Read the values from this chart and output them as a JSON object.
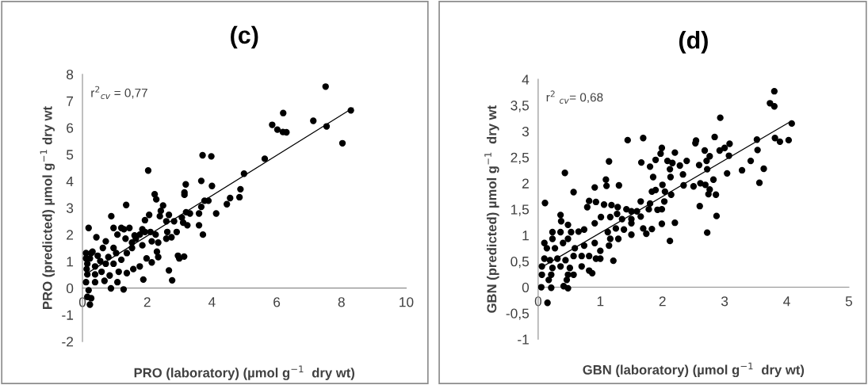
{
  "chart_data": [
    {
      "type": "scatter",
      "title": "(c)",
      "xlabel": "PRO (laboratory) (µmol g$^{−1}$  dry wt)",
      "ylabel": "PRO (predicted) µmol g$^{−1}$ dry wt",
      "annotations": [
        "r$^{2}$$_{cv}$ = 0,77"
      ],
      "xlim": [
        0,
        10
      ],
      "ylim": [
        -2,
        8
      ],
      "xticks": [
        0,
        2,
        4,
        6,
        8,
        10
      ],
      "yticks": [
        -2,
        -1,
        0,
        1,
        2,
        3,
        4,
        5,
        6,
        7,
        8
      ],
      "series": [
        {
          "marker": "circle",
          "color": "#000000",
          "x": [
            7.51,
            8.29,
            6.2,
            5.86,
            6.02,
            6.19,
            6.3,
            7.13,
            7.54,
            8.03,
            5.63,
            4.99,
            4.88,
            4.85,
            4.56,
            4.46,
            2.03,
            3.71,
            3.98,
            3.67,
            4.0,
            3.19,
            3.15,
            3.15,
            2.23,
            2.28,
            1.35,
            3.77,
            3.89,
            3.67,
            4.13,
            2.49,
            2.42,
            2.39,
            2.67,
            2.06,
            1.93,
            0.89,
            3.2,
            3.32,
            3.07,
            3.11,
            3.24,
            3.6,
            3.6,
            3.72,
            2.83,
            2.59,
            2.91,
            2.62,
            2.26,
            2.1,
            1.77,
            1.61,
            1.45,
            1.2,
            0.96,
            0.19,
            0.43,
            0.72,
            1.08,
            1.33,
            1.53,
            1.85,
            2.14,
            2.34,
            2.59,
            2.75,
            2.3,
            2.34,
            2.14,
            2.95,
            2.99,
            3.14,
            2.67,
            2.77,
            1.88,
            1.27,
            0.88,
            1.98,
            1.77,
            1.57,
            1.37,
            1.12,
            1.2,
            0.96,
            0.8,
            0.63,
            0.31,
            0.23,
            0.15,
            0.39,
            0.59,
            0.84,
            1.08,
            0.68,
            0.39,
            0.15,
            0.11,
            0.19,
            0.27,
            0.15,
            0.23,
            0.13,
            0.27,
            0.47,
            0.72,
            1.04,
            1.37,
            1.53,
            1.65,
            0.96,
            0.55,
            0.39,
            0.11,
            0.11,
            1.28,
            1.85,
            1.93
          ],
          "values": [
            7.54,
            6.65,
            6.55,
            6.11,
            5.93,
            5.84,
            5.83,
            6.26,
            6.05,
            5.42,
            4.84,
            4.28,
            3.7,
            3.4,
            3.37,
            3.14,
            4.4,
            4.97,
            4.93,
            4.01,
            3.82,
            3.88,
            3.58,
            3.49,
            3.51,
            3.32,
            3.11,
            3.27,
            3.27,
            3.04,
            2.79,
            3.09,
            2.89,
            2.69,
            2.74,
            2.74,
            2.54,
            2.69,
            2.84,
            2.79,
            2.64,
            2.45,
            2.35,
            2.35,
            2.79,
            2.0,
            2.5,
            2.5,
            2.1,
            2.1,
            2.0,
            2.1,
            2.0,
            1.97,
            2.25,
            2.25,
            2.25,
            2.25,
            1.9,
            1.75,
            2.0,
            1.85,
            1.7,
            1.6,
            1.75,
            1.7,
            1.85,
            1.9,
            1.36,
            1.16,
            0.96,
            1.21,
            1.11,
            1.18,
            0.66,
            0.29,
            0.32,
            -0.05,
            -0.01,
            1.11,
            0.81,
            0.71,
            0.56,
            0.61,
            1.06,
            0.91,
            1.16,
            1.5,
            1.36,
            1.11,
            0.91,
            0.81,
            0.61,
            0.47,
            0.22,
            0.27,
            0.22,
            0.51,
            0.22,
            -0.08,
            -0.38,
            -0.33,
            -0.62,
            0.71,
            1.31,
            1.21,
            0.91,
            1.31,
            1.31,
            1.5,
            1.85,
            1.5,
            1.01,
            0.51,
            1.11,
            1.31,
            2.2,
            2.2,
            2.1
          ]
        },
        {
          "type": "line",
          "color": "#000000",
          "x": [
            0.1,
            8.35
          ],
          "values": [
            0.52,
            6.74
          ]
        }
      ]
    },
    {
      "type": "scatter",
      "title": "(d)",
      "xlabel": "GBN (laboratory) (µmol g$^{−1}$  dry wt)",
      "ylabel": "GBN (predicted) µmol g$^{−1}$  dry wt",
      "annotations": [
        "r$^{2}$ $_{cv}$= 0,68"
      ],
      "xlim": [
        0,
        5
      ],
      "ylim": [
        -1,
        4
      ],
      "xticks": [
        0,
        1,
        2,
        3,
        4,
        5
      ],
      "yticks": [
        {
          "value": -1,
          "label": "-1"
        },
        {
          "value": -0.5,
          "label": "-0,5"
        },
        0,
        {
          "value": 0.5,
          "label": "0,5"
        },
        1,
        {
          "value": 1.5,
          "label": "1,5"
        },
        2,
        {
          "value": 2.5,
          "label": "2,5"
        },
        3,
        {
          "value": 3.5,
          "label": "3,5"
        },
        4
      ],
      "series": [
        {
          "marker": "circle",
          "color": "#000000",
          "x": [
            3.8,
            3.73,
            3.8,
            2.93,
            4.08,
            1.69,
            2.84,
            2.54,
            2.53,
            3.52,
            3.81,
            3.89,
            4.03,
            3.08,
            3.0,
            2.92,
            2.68,
            1.99,
            1.97,
            2.2,
            2.76,
            3.07,
            3.53,
            1.66,
            1.89,
            1.8,
            2.08,
            2.16,
            2.28,
            2.39,
            2.59,
            2.71,
            2.72,
            2.12,
            3.42,
            3.28,
            3.63,
            3.04,
            2.33,
            1.85,
            2.13,
            2.82,
            3.56,
            2.34,
            2.5,
            2.61,
            2.69,
            2.76,
            2.74,
            2.86,
            2.0,
            2.04,
            1.83,
            1.89,
            2.14,
            2.03,
            1.65,
            1.8,
            1.78,
            1.92,
            1.99,
            2.6,
            1.59,
            1.65,
            2.87,
            1.99,
            2.2,
            1.69,
            1.83,
            1.74,
            2.72,
            2.12,
            1.44,
            1.14,
            0.43,
            0.11,
            0.57,
            1.09,
            1.1,
            1.3,
            0.91,
            0.82,
            0.93,
            0.79,
            1.06,
            1.18,
            1.28,
            1.42,
            1.5,
            0.36,
            0.37,
            0.48,
            0.53,
            0.65,
            0.74,
            0.91,
            1.01,
            1.16,
            1.27,
            1.35,
            1.5,
            1.12,
            1.25,
            1.38,
            1.5,
            1.16,
            1.29,
            1.5,
            0.23,
            0.36,
            0.1,
            0.23,
            0.14,
            0.27,
            0.4,
            0.48,
            0.59,
            0.74,
            0.91,
            1.0,
            1.14,
            0.57,
            0.7,
            0.82,
            0.93,
            1.0,
            1.21,
            0.1,
            0.19,
            0.31,
            0.44,
            0.06,
            0.23,
            0.36,
            0.51,
            0.7,
            0.82,
            0.87,
            0.06,
            0.21,
            0.48,
            0.57,
            0.17,
            0.46,
            0.05,
            0.21,
            0.41,
            0.48,
            0.15
          ],
          "values": [
            3.77,
            3.54,
            3.48,
            3.26,
            3.15,
            2.87,
            2.89,
            2.82,
            2.77,
            2.84,
            2.87,
            2.8,
            2.83,
            2.76,
            2.68,
            2.63,
            2.63,
            2.68,
            2.57,
            2.59,
            2.52,
            2.53,
            2.64,
            2.4,
            2.45,
            2.32,
            2.43,
            2.39,
            2.34,
            2.43,
            2.35,
            2.43,
            2.27,
            2.27,
            2.43,
            2.25,
            2.28,
            2.19,
            2.17,
            2.12,
            2.12,
            2.07,
            2.01,
            1.96,
            1.94,
            2.0,
            1.97,
            1.88,
            1.79,
            1.78,
            1.97,
            1.84,
            1.84,
            1.87,
            1.78,
            1.65,
            1.65,
            1.61,
            1.5,
            1.49,
            1.5,
            1.56,
            1.46,
            1.36,
            1.37,
            1.22,
            1.24,
            1.13,
            1.12,
            1.03,
            1.05,
            0.89,
            2.83,
            2.42,
            2.2,
            1.62,
            1.83,
            2.07,
            1.95,
            1.96,
            1.92,
            1.66,
            1.64,
            1.54,
            1.59,
            1.58,
            1.54,
            1.5,
            1.46,
            1.39,
            1.27,
            1.2,
            1.06,
            1.07,
            1.11,
            1.23,
            1.35,
            1.35,
            1.41,
            1.31,
            1.31,
            1.06,
            1.13,
            1.11,
            1.23,
            0.93,
            0.93,
            1.01,
            1.06,
            1.06,
            0.85,
            0.93,
            0.75,
            0.75,
            0.85,
            0.93,
            0.75,
            0.8,
            0.85,
            0.7,
            0.8,
            0.6,
            0.6,
            0.6,
            0.55,
            0.55,
            0.51,
            0.55,
            0.52,
            0.55,
            0.52,
            0.4,
            0.37,
            0.4,
            0.37,
            0.4,
            0.32,
            0.27,
            0.24,
            0.24,
            0.24,
            0.24,
            0.14,
            0.14,
            0.0,
            -0.01,
            0.02,
            -0.02,
            -0.3
          ]
        },
        {
          "type": "line",
          "color": "#000000",
          "x": [
            0.05,
            4.08
          ],
          "values": [
            0.38,
            3.2
          ]
        }
      ]
    }
  ]
}
